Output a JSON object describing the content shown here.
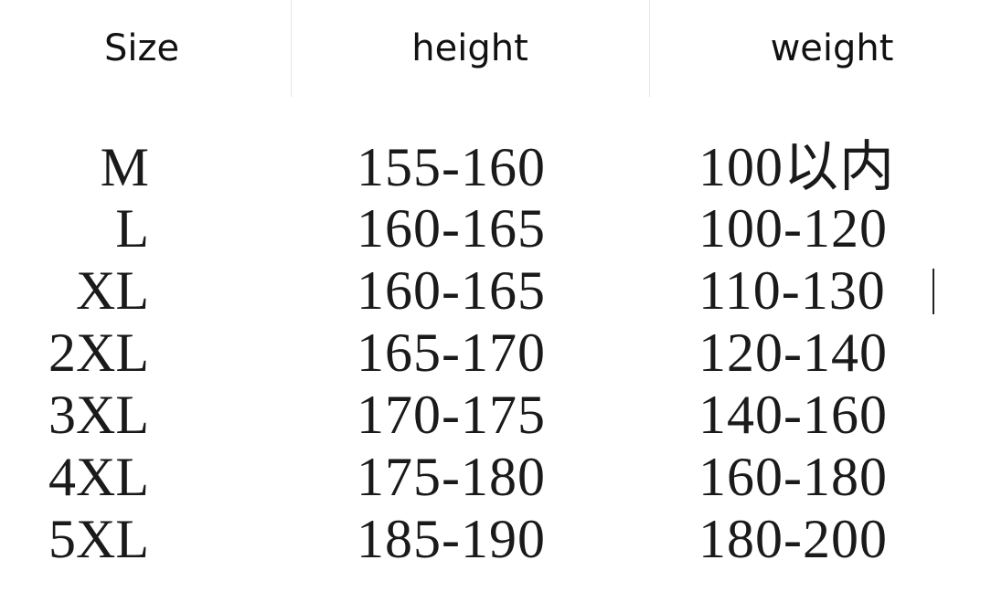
{
  "header": {
    "size": "Size",
    "height": "height",
    "weight": "weight"
  },
  "rows": [
    {
      "size": "M",
      "height": "155-160",
      "weight": "100以内"
    },
    {
      "size": "L",
      "height": "160-165",
      "weight": "100-120"
    },
    {
      "size": "XL",
      "height": "160-165",
      "weight": "110-130"
    },
    {
      "size": "2XL",
      "height": "165-170",
      "weight": "120-140"
    },
    {
      "size": "3XL",
      "height": "170-175",
      "weight": "140-160"
    },
    {
      "size": "4XL",
      "height": "175-180",
      "weight": "160-180"
    },
    {
      "size": "5XL",
      "height": "185-190",
      "weight": "180-200"
    }
  ]
}
